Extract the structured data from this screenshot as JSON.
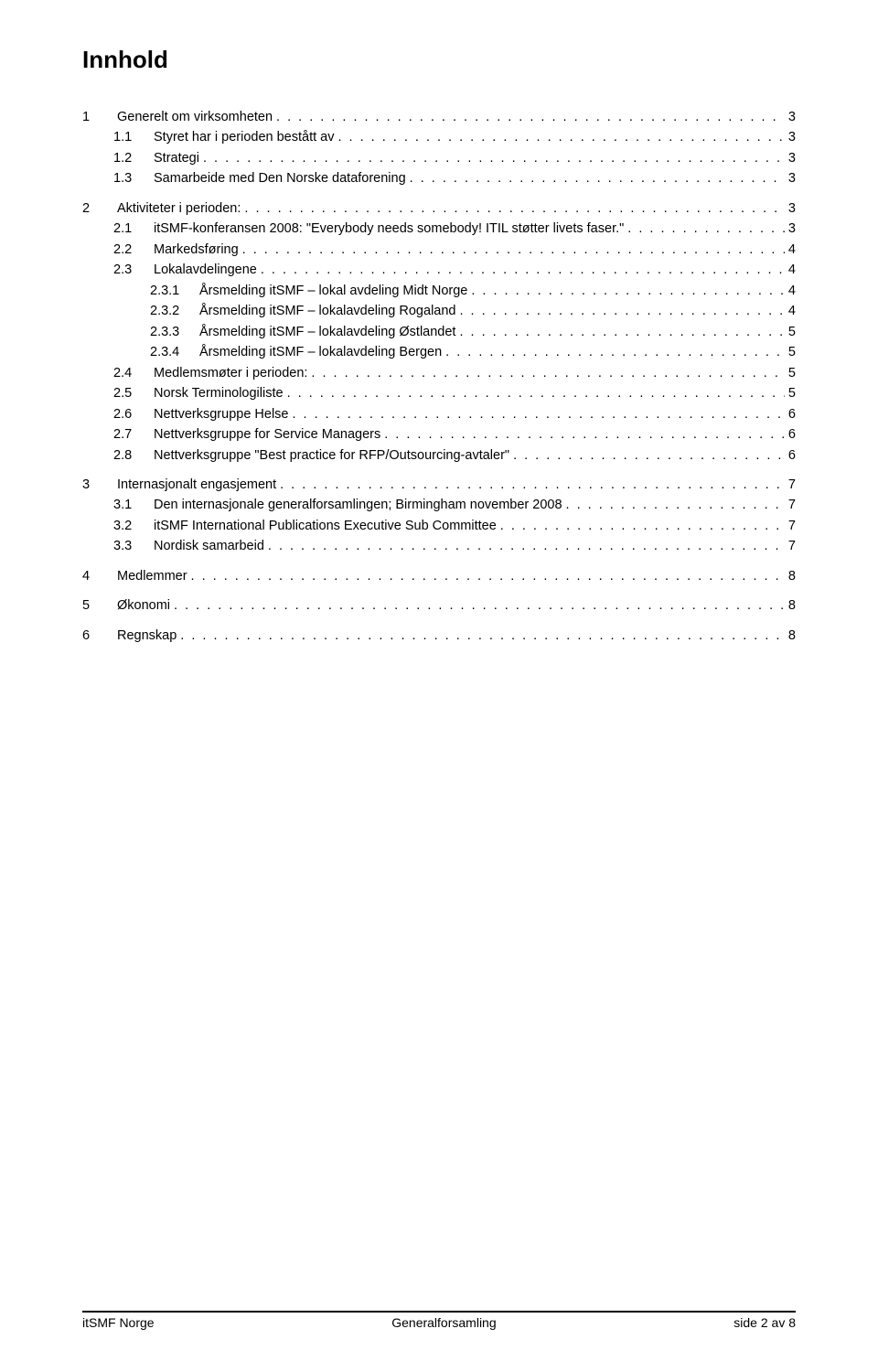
{
  "title": "Innhold",
  "toc": [
    {
      "entries": [
        {
          "level": 1,
          "num": "1",
          "label": "Generelt om virksomheten",
          "page": "3"
        },
        {
          "level": 2,
          "num": "1.1",
          "label": "Styret har i perioden bestått av",
          "page": "3"
        },
        {
          "level": 2,
          "num": "1.2",
          "label": "Strategi",
          "page": "3"
        },
        {
          "level": 2,
          "num": "1.3",
          "label": "Samarbeide med Den Norske dataforening",
          "page": "3"
        }
      ]
    },
    {
      "entries": [
        {
          "level": 1,
          "num": "2",
          "label": "Aktiviteter i perioden:",
          "page": "3"
        },
        {
          "level": 2,
          "num": "2.1",
          "label": "itSMF-konferansen 2008: \"Everybody needs somebody! ITIL støtter livets faser.\"",
          "page": "3"
        },
        {
          "level": 2,
          "num": "2.2",
          "label": "Markedsføring",
          "page": "4"
        },
        {
          "level": 2,
          "num": "2.3",
          "label": "Lokalavdelingene",
          "page": "4"
        },
        {
          "level": 3,
          "num": "2.3.1",
          "label": "Årsmelding itSMF – lokal avdeling Midt Norge",
          "page": "4"
        },
        {
          "level": 3,
          "num": "2.3.2",
          "label": "Årsmelding itSMF – lokalavdeling Rogaland",
          "page": "4"
        },
        {
          "level": 3,
          "num": "2.3.3",
          "label": "Årsmelding itSMF – lokalavdeling Østlandet",
          "page": "5"
        },
        {
          "level": 3,
          "num": "2.3.4",
          "label": "Årsmelding itSMF – lokalavdeling Bergen",
          "page": "5"
        },
        {
          "level": 2,
          "num": "2.4",
          "label": "Medlemsmøter i perioden:",
          "page": "5"
        },
        {
          "level": 2,
          "num": "2.5",
          "label": "Norsk Terminologiliste",
          "page": "5"
        },
        {
          "level": 2,
          "num": "2.6",
          "label": "Nettverksgruppe Helse",
          "page": "6"
        },
        {
          "level": 2,
          "num": "2.7",
          "label": "Nettverksgruppe for Service Managers",
          "page": "6"
        },
        {
          "level": 2,
          "num": "2.8",
          "label": "Nettverksgruppe \"Best practice for RFP/Outsourcing-avtaler\"",
          "page": "6"
        }
      ]
    },
    {
      "entries": [
        {
          "level": 1,
          "num": "3",
          "label": "Internasjonalt engasjement",
          "page": "7"
        },
        {
          "level": 2,
          "num": "3.1",
          "label": "Den internasjonale generalforsamlingen;  Birmingham november 2008",
          "page": "7"
        },
        {
          "level": 2,
          "num": "3.2",
          "label": "itSMF International Publications Executive Sub Committee",
          "page": "7"
        },
        {
          "level": 2,
          "num": "3.3",
          "label": "Nordisk samarbeid",
          "page": "7"
        }
      ]
    },
    {
      "entries": [
        {
          "level": 1,
          "num": "4",
          "label": "Medlemmer",
          "page": "8"
        }
      ]
    },
    {
      "entries": [
        {
          "level": 1,
          "num": "5",
          "label": "Økonomi",
          "page": "8"
        }
      ]
    },
    {
      "entries": [
        {
          "level": 1,
          "num": "6",
          "label": "Regnskap",
          "page": "8"
        }
      ]
    }
  ],
  "footer": {
    "left": "itSMF Norge",
    "center": "Generalforsamling",
    "right": "side 2 av 8"
  }
}
